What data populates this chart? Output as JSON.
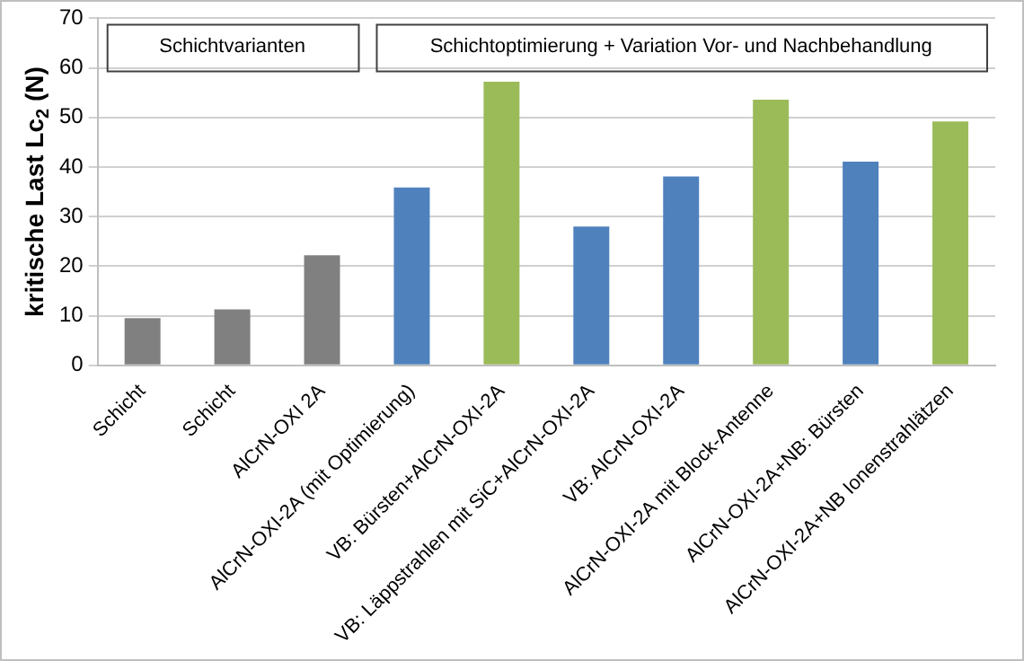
{
  "chart_data": {
    "type": "bar",
    "ylabel": "kritische Last Lc$_{2}$ (N)",
    "categories": [
      "Schicht",
      "Schicht",
      "AlCrN-OXI 2A",
      "AlCrN-OXI-2A (mit Optimierung)",
      "VB: Bürsten+AlCrN-OXI-2A",
      "VB: Läppstrahlen mit SiC+AlCrN-OXI-2A",
      "VB: AlCrN-OXI-2A",
      "AlCrN-OXI-2A mit Block-Antenne",
      "AlCrN-OXI-2A+NB: Bürsten",
      "AlCrN-OXI-2A+NB Ionenstrahlätzen"
    ],
    "values": [
      9.5,
      11.3,
      22.2,
      35.9,
      57.2,
      28,
      38.1,
      53.6,
      41.1,
      49.2
    ],
    "colors": [
      "#808080",
      "#808080",
      "#808080",
      "#4f81bd",
      "#9bbb59",
      "#4f81bd",
      "#4f81bd",
      "#9bbb59",
      "#4f81bd",
      "#9bbb59"
    ],
    "annotations": [
      "Schichtvarianten",
      "Schichtoptimierung + Variation Vor- und Nachbehandlung"
    ],
    "ylim": [
      0,
      70
    ],
    "yticks": [
      0,
      10,
      20,
      30,
      40,
      50,
      60,
      70
    ],
    "grid": "y",
    "legend": false
  }
}
